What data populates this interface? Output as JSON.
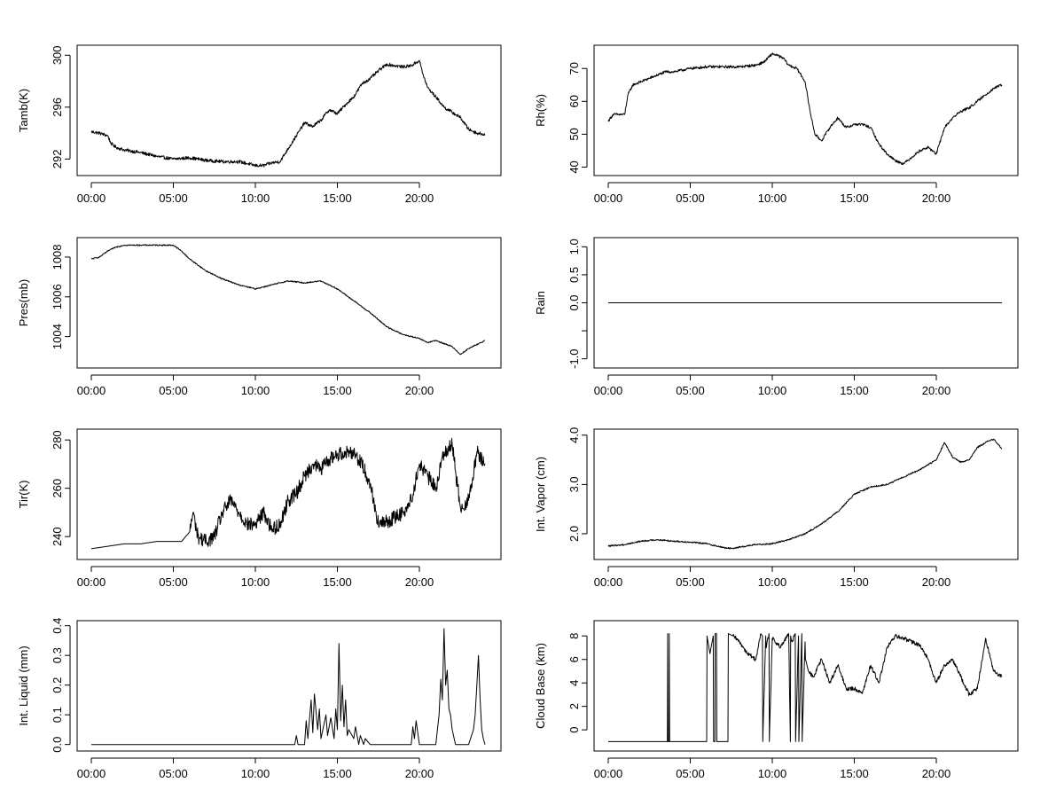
{
  "chart_data": [
    {
      "id": "tamb",
      "type": "line",
      "ylabel": "Tamb(K)",
      "xlim": [
        0,
        24
      ],
      "ylim": [
        291,
        300.5
      ],
      "yticks": [
        292,
        296,
        300
      ],
      "xticks": [
        0,
        5,
        10,
        15,
        20
      ],
      "xtick_labels": [
        "00:00",
        "05:00",
        "10:00",
        "15:00",
        "20:00"
      ],
      "noise": 0.25,
      "x": [
        0,
        0.5,
        1,
        1.2,
        1.5,
        2,
        3,
        4,
        5,
        6,
        7,
        8,
        9,
        10,
        10.5,
        11,
        11.5,
        12,
        12.5,
        13,
        13.5,
        14,
        14.5,
        15,
        15.5,
        16,
        16.5,
        17,
        17.5,
        18,
        18.5,
        19,
        19.5,
        20,
        20.2,
        20.5,
        21,
        21.5,
        22,
        22.5,
        23,
        23.5,
        24
      ],
      "y": [
        294.1,
        294.0,
        293.8,
        293.2,
        292.9,
        292.7,
        292.5,
        292.2,
        292.0,
        292.1,
        291.9,
        291.8,
        291.8,
        291.5,
        291.5,
        291.7,
        291.8,
        292.8,
        293.8,
        294.8,
        294.5,
        295.0,
        295.8,
        295.5,
        296.2,
        296.8,
        297.8,
        298.2,
        298.8,
        299.3,
        299.2,
        299.1,
        299.2,
        299.6,
        298.6,
        297.5,
        296.8,
        296.0,
        295.6,
        295.2,
        294.3,
        294.0,
        293.9
      ]
    },
    {
      "id": "rh",
      "type": "line",
      "ylabel": "Rh(%)",
      "xlim": [
        0,
        24
      ],
      "ylim": [
        38.5,
        76
      ],
      "yticks": [
        40,
        50,
        60,
        70
      ],
      "xticks": [
        0,
        5,
        10,
        15,
        20
      ],
      "xtick_labels": [
        "00:00",
        "05:00",
        "10:00",
        "15:00",
        "20:00"
      ],
      "noise": 0.8,
      "x": [
        0,
        0.3,
        0.6,
        1,
        1.2,
        1.5,
        2,
        2.5,
        3,
        3.5,
        4,
        5,
        6,
        7,
        8,
        9,
        9.5,
        10,
        10.3,
        10.7,
        11,
        11.5,
        12,
        12.3,
        12.6,
        13,
        13.5,
        14,
        14.5,
        15,
        15.5,
        16,
        16.5,
        17,
        17.5,
        18,
        18.5,
        19,
        19.5,
        20,
        20.5,
        21,
        21.5,
        22,
        22.5,
        23,
        23.5,
        24
      ],
      "y": [
        54,
        56,
        56,
        56,
        62,
        65,
        66,
        67,
        68,
        69,
        69,
        70,
        70.5,
        70.5,
        70.5,
        71,
        72,
        74.5,
        74,
        73,
        71,
        70,
        66,
        57,
        50,
        48,
        52,
        55,
        52,
        53,
        53,
        52,
        47,
        44,
        42,
        41,
        43,
        45,
        46,
        44,
        52,
        55,
        57,
        58,
        60,
        62,
        64,
        65
      ]
    },
    {
      "id": "pres",
      "type": "line",
      "ylabel": "Pres(mb)",
      "xlim": [
        0,
        24
      ],
      "ylim": [
        1002.6,
        1008.8
      ],
      "yticks": [
        1004,
        1006,
        1008
      ],
      "xticks": [
        0,
        5,
        10,
        15,
        20
      ],
      "xtick_labels": [
        "00:00",
        "05:00",
        "10:00",
        "15:00",
        "20:00"
      ],
      "noise": 0.06,
      "x": [
        0,
        0.5,
        1,
        1.5,
        2,
        3,
        4,
        5,
        5.5,
        6,
        7,
        8,
        9,
        10,
        11,
        12,
        13,
        14,
        15,
        16,
        17,
        18,
        19,
        20,
        20.5,
        21,
        22,
        22.5,
        23,
        24
      ],
      "y": [
        1007.9,
        1008.0,
        1008.3,
        1008.5,
        1008.6,
        1008.6,
        1008.6,
        1008.6,
        1008.3,
        1007.9,
        1007.3,
        1006.9,
        1006.6,
        1006.4,
        1006.6,
        1006.8,
        1006.7,
        1006.8,
        1006.4,
        1005.8,
        1005.2,
        1004.5,
        1004.1,
        1003.9,
        1003.7,
        1003.8,
        1003.5,
        1003.1,
        1003.4,
        1003.8
      ]
    },
    {
      "id": "rain",
      "type": "line",
      "ylabel": "Rain",
      "xlim": [
        0,
        24
      ],
      "ylim": [
        -1.1,
        1.1
      ],
      "yticks": [
        -1.0,
        -0.5,
        0.0,
        0.5,
        1.0
      ],
      "ytick_labels": [
        "-1.0",
        "",
        "0.0",
        "0.5",
        "1.0"
      ],
      "xticks": [
        0,
        5,
        10,
        15,
        20
      ],
      "xtick_labels": [
        "00:00",
        "05:00",
        "10:00",
        "15:00",
        "20:00"
      ],
      "noise": 0,
      "x": [
        0,
        24
      ],
      "y": [
        0,
        0
      ]
    },
    {
      "id": "tir",
      "type": "line",
      "ylabel": "Tir(K)",
      "xlim": [
        0,
        24
      ],
      "ylim": [
        232,
        283
      ],
      "yticks": [
        240,
        260,
        280
      ],
      "xticks": [
        0,
        5,
        10,
        15,
        20
      ],
      "xtick_labels": [
        "00:00",
        "05:00",
        "10:00",
        "15:00",
        "20:00"
      ],
      "noise": 6,
      "noise_start": 6,
      "x": [
        0,
        1,
        2,
        3,
        4,
        5,
        5.5,
        6,
        6.2,
        6.5,
        7,
        7.5,
        8,
        8.5,
        9,
        9.5,
        10,
        10.5,
        11,
        11.5,
        12,
        12.5,
        13,
        13.5,
        14,
        14.5,
        15,
        15.5,
        16,
        16.5,
        17,
        17.5,
        18,
        18.5,
        19,
        19.5,
        20,
        20.5,
        21,
        21.5,
        22,
        22.5,
        23,
        23.5,
        24
      ],
      "y": [
        235,
        236,
        237,
        237,
        238,
        238,
        238,
        242,
        250,
        240,
        238,
        240,
        250,
        255,
        250,
        245,
        245,
        250,
        243,
        245,
        255,
        258,
        265,
        270,
        268,
        272,
        274,
        275,
        275,
        270,
        262,
        245,
        246,
        248,
        250,
        255,
        270,
        265,
        260,
        275,
        278,
        252,
        255,
        275,
        270
      ]
    },
    {
      "id": "vapor",
      "type": "line",
      "ylabel": "Int. Vapor (cm)",
      "xlim": [
        0,
        24
      ],
      "ylim": [
        1.55,
        4.05
      ],
      "yticks": [
        2.0,
        3.0,
        4.0
      ],
      "ytick_labels": [
        "2.0",
        "3.0",
        "4.0"
      ],
      "xticks": [
        0,
        5,
        10,
        15,
        20
      ],
      "xtick_labels": [
        "00:00",
        "05:00",
        "10:00",
        "15:00",
        "20:00"
      ],
      "noise": 0.03,
      "x": [
        0,
        1,
        2,
        3,
        4,
        5,
        6,
        7,
        7.5,
        8,
        9,
        10,
        11,
        12,
        13,
        14,
        15,
        16,
        17,
        18,
        19,
        20,
        20.5,
        21,
        21.5,
        22,
        22.5,
        23,
        23.5,
        24
      ],
      "y": [
        1.75,
        1.78,
        1.85,
        1.88,
        1.85,
        1.83,
        1.8,
        1.72,
        1.7,
        1.73,
        1.78,
        1.8,
        1.88,
        2.0,
        2.2,
        2.45,
        2.8,
        2.95,
        3.0,
        3.15,
        3.3,
        3.5,
        3.85,
        3.55,
        3.45,
        3.5,
        3.75,
        3.85,
        3.92,
        3.72
      ]
    },
    {
      "id": "liquid",
      "type": "line",
      "ylabel": "Int. Liquid (mm)",
      "xlim": [
        0,
        24
      ],
      "ylim": [
        -0.01,
        0.405
      ],
      "yticks": [
        0.0,
        0.1,
        0.2,
        0.3,
        0.4
      ],
      "ytick_labels": [
        "0.0",
        "0.1",
        "0.2",
        "0.3",
        "0.4"
      ],
      "xticks": [
        0,
        5,
        10,
        15,
        20
      ],
      "xtick_labels": [
        "00:00",
        "05:00",
        "10:00",
        "15:00",
        "20:00"
      ],
      "noise": 0,
      "x": [
        0,
        12.4,
        12.5,
        12.6,
        13,
        13.1,
        13.2,
        13.4,
        13.5,
        13.6,
        13.8,
        13.9,
        14.0,
        14.3,
        14.4,
        14.6,
        14.8,
        14.9,
        15.0,
        15.1,
        15.2,
        15.3,
        15.4,
        15.5,
        15.6,
        15.7,
        16.0,
        16.1,
        16.3,
        16.4,
        16.6,
        16.7,
        17.0,
        19.5,
        19.6,
        19.7,
        19.8,
        20.0,
        21.0,
        21.2,
        21.3,
        21.4,
        21.5,
        21.6,
        21.7,
        21.8,
        21.9,
        22.0,
        22.2,
        23.0,
        23.3,
        23.4,
        23.5,
        23.6,
        23.7,
        23.8,
        23.9,
        24
      ],
      "y": [
        0,
        0,
        0.03,
        0,
        0,
        0.08,
        0.02,
        0.15,
        0.04,
        0.17,
        0.05,
        0.12,
        0.02,
        0.1,
        0.03,
        0.09,
        0.02,
        0.12,
        0.05,
        0.34,
        0.08,
        0.2,
        0.06,
        0.15,
        0.03,
        0.05,
        0.02,
        0.06,
        0,
        0.03,
        0,
        0.02,
        0,
        0,
        0.06,
        0.02,
        0.08,
        0,
        0,
        0.1,
        0.22,
        0.15,
        0.39,
        0.2,
        0.25,
        0.12,
        0.1,
        0.05,
        0,
        0,
        0.05,
        0.1,
        0.2,
        0.3,
        0.15,
        0.05,
        0.02,
        0
      ]
    },
    {
      "id": "cloudbase",
      "type": "line",
      "ylabel": "Cloud Base (km)",
      "xlim": [
        0,
        24
      ],
      "ylim": [
        -1.5,
        9
      ],
      "yticks": [
        0,
        2,
        4,
        6,
        8
      ],
      "xticks": [
        0,
        5,
        10,
        15,
        20
      ],
      "xtick_labels": [
        "00:00",
        "05:00",
        "10:00",
        "15:00",
        "20:00"
      ],
      "noise": 0.35,
      "noise_start": 7.6,
      "x": [
        0,
        3.6,
        3.62,
        3.64,
        3.7,
        3.72,
        3.74,
        6.0,
        6.02,
        6.2,
        6.4,
        6.42,
        6.5,
        6.52,
        6.6,
        6.62,
        7.3,
        7.32,
        7.6,
        8.0,
        8.5,
        9.0,
        9.3,
        9.4,
        9.42,
        9.6,
        9.62,
        9.8,
        9.82,
        10.0,
        10.5,
        11.0,
        11.1,
        11.12,
        11.2,
        11.4,
        11.42,
        11.6,
        11.62,
        11.8,
        11.82,
        12.0,
        12.02,
        12.2,
        12.5,
        13.0,
        13.5,
        14.0,
        14.5,
        15.0,
        15.5,
        16.0,
        16.5,
        17.0,
        17.5,
        18.0,
        18.5,
        19.0,
        19.5,
        20.0,
        20.5,
        21.0,
        21.5,
        22.0,
        22.5,
        23.0,
        23.5,
        24
      ],
      "y": [
        -1,
        -1,
        8.2,
        -1,
        -1,
        8.2,
        -1,
        -1,
        8.0,
        6.5,
        8.0,
        -1,
        -1,
        8.2,
        8.2,
        -1,
        -1,
        8.2,
        8.0,
        7.5,
        6.5,
        6.0,
        8.2,
        8.0,
        -1,
        8.0,
        7.0,
        8.2,
        -1,
        7.8,
        7.0,
        8.2,
        -1,
        8.0,
        7.5,
        8.2,
        -1,
        8.0,
        -1,
        8.2,
        -1,
        7.5,
        6.0,
        5.0,
        4.5,
        6.0,
        4.0,
        5.5,
        3.5,
        3.5,
        3.2,
        5.5,
        4.0,
        7.0,
        8.0,
        7.8,
        7.5,
        7.2,
        6.0,
        4.0,
        5.5,
        6.0,
        4.5,
        3.0,
        3.5,
        7.8,
        5.0,
        4.5
      ]
    }
  ]
}
